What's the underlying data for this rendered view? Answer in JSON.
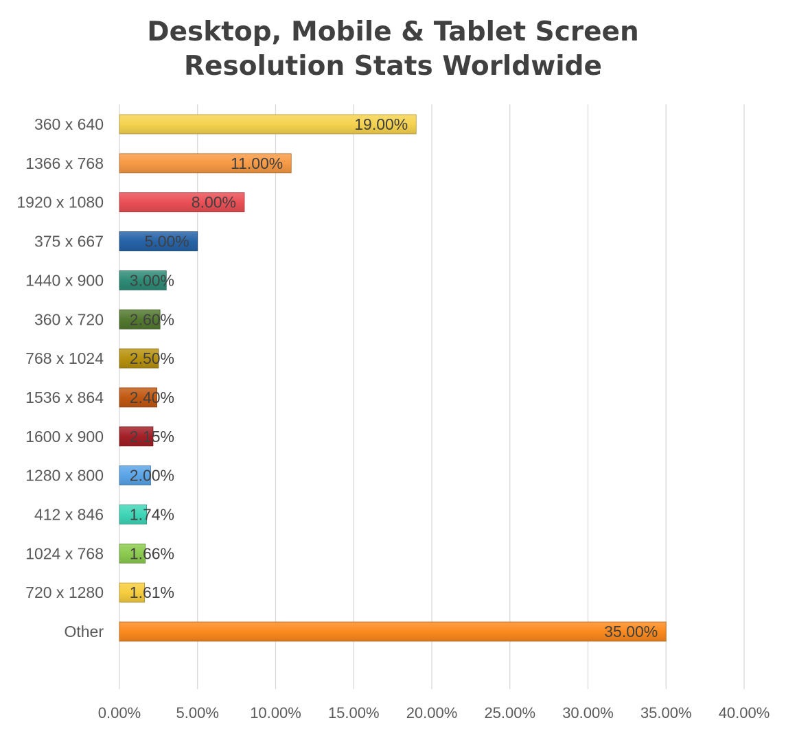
{
  "chart_data": {
    "type": "bar",
    "orientation": "horizontal",
    "title_lines": [
      "Desktop, Mobile & Tablet Screen",
      "Resolution Stats Worldwide"
    ],
    "xlabel": "",
    "ylabel": "",
    "xlim": [
      0,
      40
    ],
    "x_ticks": [
      "0.00%",
      "5.00%",
      "10.00%",
      "15.00%",
      "20.00%",
      "25.00%",
      "30.00%",
      "35.00%",
      "40.00%"
    ],
    "grid": "vertical",
    "legend": "none",
    "bars": [
      {
        "label": "360 x 640",
        "value": 19.0,
        "value_label": "19.00%",
        "color": "#F5D34F"
      },
      {
        "label": "1366 x 768",
        "value": 11.0,
        "value_label": "11.00%",
        "color": "#F79A45"
      },
      {
        "label": "1920 x 1080",
        "value": 8.0,
        "value_label": "8.00%",
        "color": "#EA4F55"
      },
      {
        "label": "375 x 667",
        "value": 5.0,
        "value_label": "5.00%",
        "color": "#2563A8"
      },
      {
        "label": "1440 x 900",
        "value": 3.0,
        "value_label": "3.00%",
        "color": "#2E8C76"
      },
      {
        "label": "360 x 720",
        "value": 2.6,
        "value_label": "2.60%",
        "color": "#537A30"
      },
      {
        "label": "768 x 1024",
        "value": 2.5,
        "value_label": "2.50%",
        "color": "#B8920F"
      },
      {
        "label": "1536 x 864",
        "value": 2.4,
        "value_label": "2.40%",
        "color": "#C25912"
      },
      {
        "label": "1600 x 900",
        "value": 2.15,
        "value_label": "2.15%",
        "color": "#A31F27"
      },
      {
        "label": "1280 x 800",
        "value": 2.0,
        "value_label": "2.00%",
        "color": "#5AA5E8"
      },
      {
        "label": "412 x 846",
        "value": 1.74,
        "value_label": "1.74%",
        "color": "#3FD6B8"
      },
      {
        "label": "1024 x 768",
        "value": 1.66,
        "value_label": "1.66%",
        "color": "#8CCB4F"
      },
      {
        "label": "720 x 1280",
        "value": 1.61,
        "value_label": "1.61%",
        "color": "#F7CD3E"
      },
      {
        "label": "Other",
        "value": 35.0,
        "value_label": "35.00%",
        "color": "#FB8A1E"
      }
    ],
    "colors": {
      "grid": "#D9D9D9",
      "text": "#404040",
      "label_text": "#595959"
    }
  }
}
